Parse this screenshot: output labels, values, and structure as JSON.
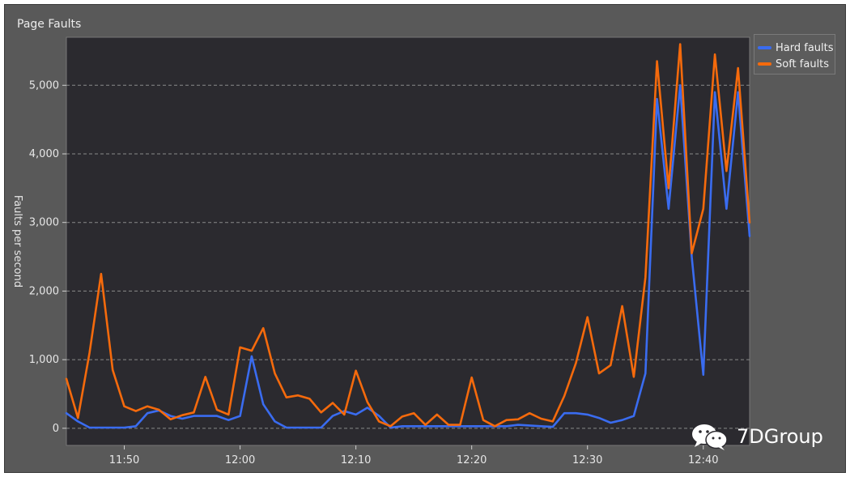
{
  "panel": {
    "title": "Page Faults"
  },
  "watermark": {
    "text": "7DGroup"
  },
  "colors": {
    "panel_bg": "#595959",
    "plot_bg": "#2b2a2f",
    "hard": "#3a6cf0",
    "soft": "#f56a0c",
    "grid": "#8a8a8a",
    "text": "#e6e6e6"
  },
  "chart_data": {
    "type": "line",
    "title": "Page Faults",
    "xlabel": "",
    "ylabel": "Faults per second",
    "xlim": [
      "11:45",
      "12:44"
    ],
    "ylim": [
      -250,
      5700
    ],
    "x_ticks": [
      "11:50",
      "12:00",
      "12:10",
      "12:20",
      "12:30",
      "12:40"
    ],
    "y_ticks": [
      "0",
      "1,000",
      "2,000",
      "3,000",
      "4,000",
      "5,000"
    ],
    "y_tick_values": [
      0,
      1000,
      2000,
      3000,
      4000,
      5000
    ],
    "grid": "horizontal dashed",
    "legend_position": "top-right outside",
    "x": [
      "11:45",
      "11:46",
      "11:47",
      "11:48",
      "11:49",
      "11:50",
      "11:51",
      "11:52",
      "11:53",
      "11:54",
      "11:55",
      "11:56",
      "11:57",
      "11:58",
      "11:59",
      "12:00",
      "12:01",
      "12:02",
      "12:03",
      "12:04",
      "12:05",
      "12:06",
      "12:07",
      "12:08",
      "12:09",
      "12:10",
      "12:11",
      "12:12",
      "12:13",
      "12:14",
      "12:15",
      "12:16",
      "12:17",
      "12:18",
      "12:19",
      "12:20",
      "12:21",
      "12:22",
      "12:23",
      "12:24",
      "12:25",
      "12:26",
      "12:27",
      "12:28",
      "12:29",
      "12:30",
      "12:31",
      "12:32",
      "12:33",
      "12:34",
      "12:35",
      "12:36",
      "12:37",
      "12:38",
      "12:39",
      "12:40",
      "12:41",
      "12:42",
      "12:43",
      "12:44"
    ],
    "series": [
      {
        "name": "Hard faults",
        "color": "#3a6cf0",
        "values": [
          220,
          100,
          10,
          10,
          10,
          10,
          30,
          220,
          260,
          180,
          140,
          180,
          180,
          180,
          120,
          180,
          1050,
          350,
          100,
          10,
          10,
          10,
          10,
          180,
          250,
          200,
          300,
          180,
          10,
          30,
          30,
          30,
          30,
          30,
          30,
          30,
          30,
          30,
          30,
          50,
          40,
          30,
          20,
          220,
          220,
          200,
          150,
          80,
          120,
          180,
          800,
          4800,
          3200,
          5000,
          2500,
          780,
          4900,
          3200,
          4900,
          2800
        ]
      },
      {
        "name": "Soft faults",
        "color": "#f56a0c",
        "values": [
          720,
          150,
          1100,
          2250,
          850,
          320,
          250,
          320,
          270,
          130,
          190,
          230,
          750,
          270,
          200,
          1180,
          1130,
          1460,
          800,
          450,
          480,
          430,
          230,
          370,
          200,
          840,
          380,
          100,
          30,
          170,
          220,
          50,
          200,
          50,
          50,
          740,
          120,
          30,
          120,
          130,
          220,
          140,
          100,
          470,
          950,
          1620,
          800,
          920,
          1780,
          750,
          2200,
          5350,
          3500,
          5600,
          2550,
          3200,
          5450,
          3750,
          5250,
          3000
        ]
      }
    ]
  }
}
